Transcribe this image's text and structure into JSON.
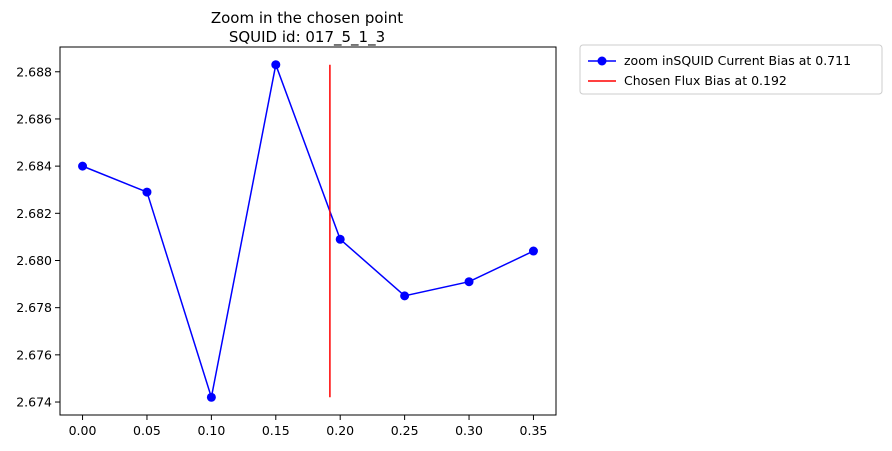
{
  "chart_data": {
    "type": "line",
    "title": "Zoom in the chosen point",
    "subtitle": "SQUID id: 017_5_1_3",
    "xlabel": "",
    "ylabel": "",
    "xlim": [
      -0.0175,
      0.3675
    ],
    "ylim": [
      2.67345,
      2.68905
    ],
    "x_ticks": [
      "0.00",
      "0.05",
      "0.10",
      "0.15",
      "0.20",
      "0.25",
      "0.30",
      "0.35"
    ],
    "x_tick_values": [
      0.0,
      0.05,
      0.1,
      0.15,
      0.2,
      0.25,
      0.3,
      0.35
    ],
    "y_ticks": [
      "2.674",
      "2.676",
      "2.678",
      "2.680",
      "2.682",
      "2.684",
      "2.686",
      "2.688"
    ],
    "y_tick_values": [
      2.674,
      2.676,
      2.678,
      2.68,
      2.682,
      2.684,
      2.686,
      2.688
    ],
    "grid": false,
    "legend_position": "outside-upper-right",
    "series": [
      {
        "name": "zoom inSQUID Current Bias at 0.711",
        "kind": "line-marker",
        "color": "#0000ff",
        "x": [
          0.0,
          0.05,
          0.1,
          0.15,
          0.2,
          0.25,
          0.3,
          0.35
        ],
        "values": [
          2.684,
          2.6829,
          2.6742,
          2.6883,
          2.6809,
          2.6785,
          2.6791,
          2.6804
        ]
      },
      {
        "name": "Chosen Flux Bias at 0.192",
        "kind": "vline",
        "color": "#ff0000",
        "x": 0.192,
        "ymin": 2.6742,
        "ymax": 2.6883
      }
    ]
  }
}
